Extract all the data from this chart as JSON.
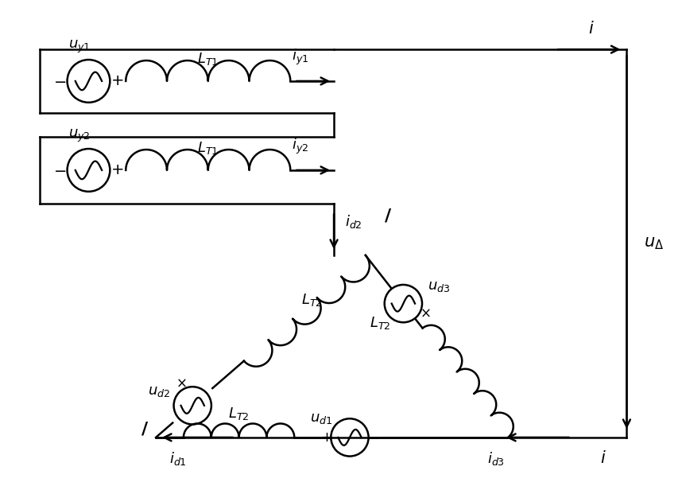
{
  "bg_color": "#ffffff",
  "line_color": "#000000",
  "line_width": 1.8,
  "fig_width": 8.63,
  "fig_height": 6.16,
  "font_size": 13
}
